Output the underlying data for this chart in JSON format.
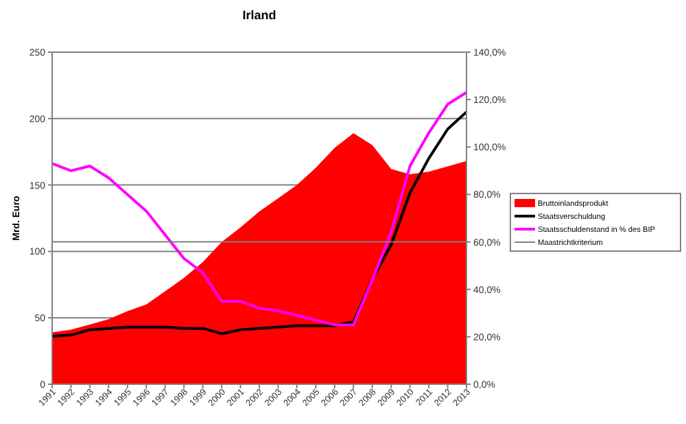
{
  "chart_data": {
    "type": "area",
    "title": "Irland",
    "ylabel": "Mrd. Euro",
    "categories": [
      "1991",
      "1992",
      "1993",
      "1994",
      "1995",
      "1996",
      "1997",
      "1998",
      "1999",
      "2000",
      "2001",
      "2002",
      "2003",
      "2004",
      "2005",
      "2006",
      "2007",
      "2008",
      "2009",
      "2010",
      "2011",
      "2012",
      "2013"
    ],
    "series": [
      {
        "name": "Bruttoinlandsprodukt",
        "color": "#ff0000",
        "values": [
          39,
          41,
          45,
          49,
          55,
          60,
          70,
          80,
          92,
          107,
          118,
          130,
          140,
          150,
          163,
          178,
          189,
          180,
          162,
          158,
          160,
          164,
          168
        ]
      },
      {
        "name": "Staatsverschuldung",
        "type": "line",
        "color": "#000000",
        "values": [
          36,
          37,
          41,
          42,
          43,
          43,
          43,
          42,
          42,
          38,
          41,
          42,
          43,
          44,
          44,
          44,
          47,
          79,
          105,
          144,
          170,
          192,
          205
        ]
      },
      {
        "name": "Staatsschuldenstand in % des BIP",
        "type": "line",
        "axis": "y2",
        "color": "#ff00ff",
        "values": [
          93,
          90,
          92,
          87,
          80,
          73,
          63,
          53,
          47,
          35,
          35,
          32,
          31,
          29,
          27,
          25,
          25,
          44,
          64,
          92,
          106,
          118,
          123
        ]
      }
    ],
    "ylim": [
      0,
      250
    ],
    "yticks": [
      0,
      50,
      100,
      150,
      200,
      250
    ],
    "y2lim": [
      0,
      140
    ],
    "y2ticks": [
      {
        "value": 0,
        "label": "0,0%"
      },
      {
        "value": 20,
        "label": "20,0%"
      },
      {
        "value": 40,
        "label": "40,0%"
      },
      {
        "value": 60,
        "label": "60,0%"
      },
      {
        "value": 80,
        "label": "80,0%"
      },
      {
        "value": 100,
        "label": "100,0%"
      },
      {
        "value": 120,
        "label": "120,0%"
      },
      {
        "value": 140,
        "label": "140,0%"
      }
    ],
    "ref_lines": [
      {
        "axis": "y2",
        "value": 60,
        "label": "Maastrichtkriterium",
        "color": "#808080"
      }
    ],
    "grid": "y",
    "legend": "right",
    "marker": "none",
    "line_style": "solid"
  }
}
